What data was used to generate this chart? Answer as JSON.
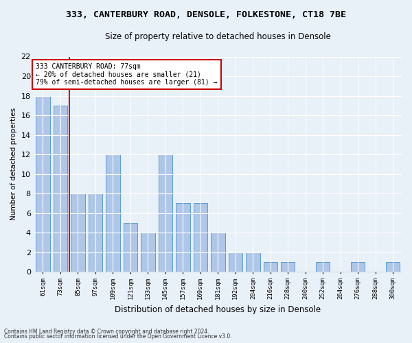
{
  "title": "333, CANTERBURY ROAD, DENSOLE, FOLKESTONE, CT18 7BE",
  "subtitle": "Size of property relative to detached houses in Densole",
  "xlabel": "Distribution of detached houses by size in Densole",
  "ylabel": "Number of detached properties",
  "bar_values": [
    18,
    17,
    8,
    8,
    12,
    5,
    4,
    12,
    7,
    7,
    4,
    2,
    2,
    1,
    1,
    0,
    1,
    0,
    1,
    0,
    1
  ],
  "bar_labels": [
    "61sqm",
    "73sqm",
    "85sqm",
    "97sqm",
    "109sqm",
    "121sqm",
    "133sqm",
    "145sqm",
    "157sqm",
    "169sqm",
    "181sqm",
    "192sqm",
    "204sqm",
    "216sqm",
    "228sqm",
    "240sqm",
    "252sqm",
    "264sqm",
    "276sqm",
    "288sqm",
    "300sqm"
  ],
  "bar_color": "#aec6e8",
  "bar_edge_color": "#5b9bd5",
  "ylim": [
    0,
    22
  ],
  "yticks": [
    0,
    2,
    4,
    6,
    8,
    10,
    12,
    14,
    16,
    18,
    20,
    22
  ],
  "red_line_x": 1.5,
  "annotation_title": "333 CANTERBURY ROAD: 77sqm",
  "annotation_line1": "← 20% of detached houses are smaller (21)",
  "annotation_line2": "79% of semi-detached houses are larger (81) →",
  "annotation_box_color": "#ffffff",
  "annotation_box_edge": "#cc0000",
  "red_line_color": "#cc0000",
  "background_color": "#e8f0f8",
  "footnote1": "Contains HM Land Registry data © Crown copyright and database right 2024.",
  "footnote2": "Contains public sector information licensed under the Open Government Licence v3.0.",
  "title_fontsize": 9.5,
  "subtitle_fontsize": 8.5
}
